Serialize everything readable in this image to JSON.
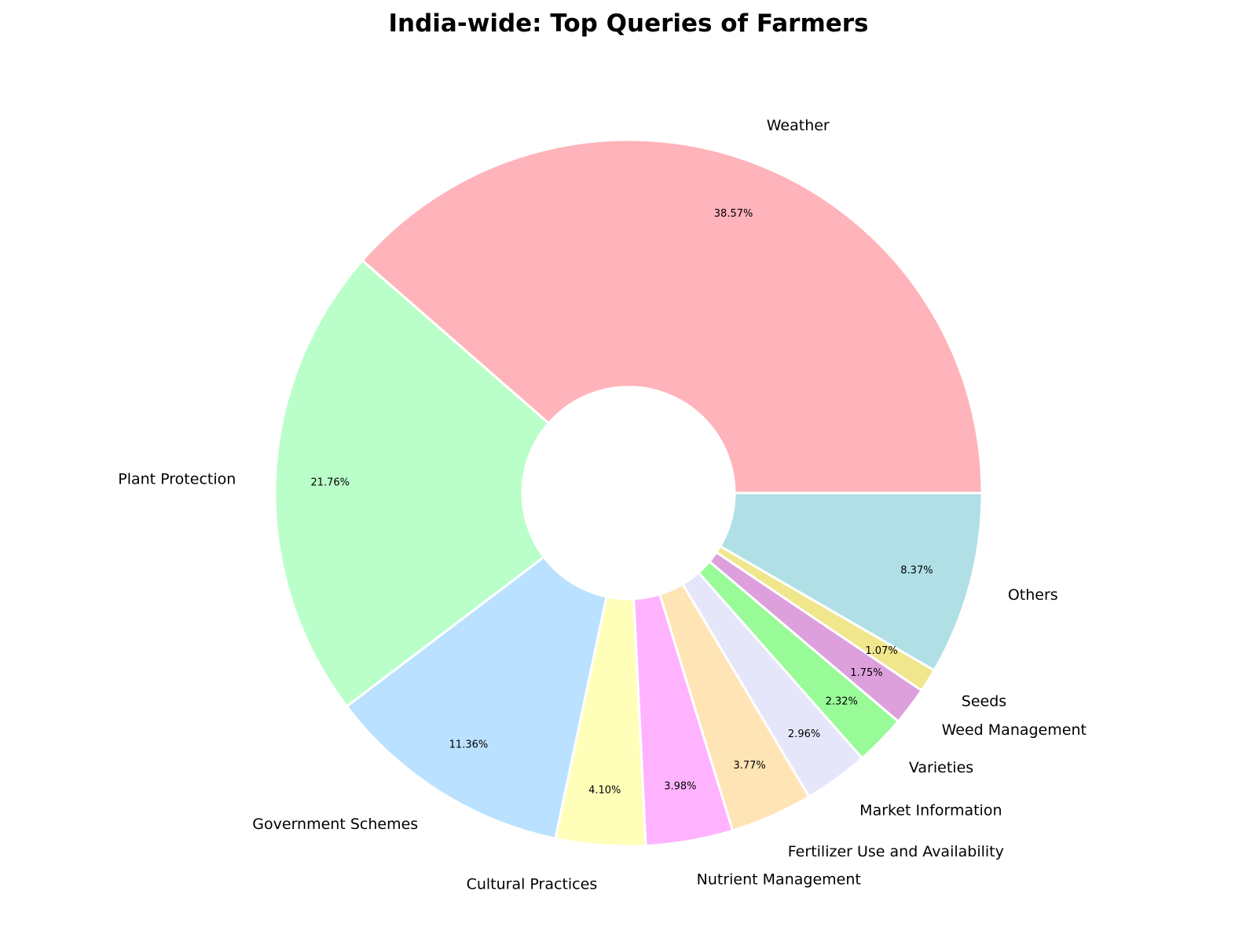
{
  "chart_data": {
    "type": "pie",
    "title": "India-wide: Top Queries of Farmers",
    "donut": true,
    "start_angle_deg": 0,
    "direction": "counterclockwise",
    "slices": [
      {
        "label": "Weather",
        "value": 38.57,
        "pct_text": "38.57%",
        "color": "#FFB3BA"
      },
      {
        "label": "Plant Protection",
        "value": 21.76,
        "pct_text": "21.76%",
        "color": "#BAFFC9"
      },
      {
        "label": "Government Schemes",
        "value": 11.36,
        "pct_text": "11.36%",
        "color": "#BAE1FF"
      },
      {
        "label": "Cultural Practices",
        "value": 4.1,
        "pct_text": "4.10%",
        "color": "#FFFFBA"
      },
      {
        "label": "Nutrient Management",
        "value": 3.98,
        "pct_text": "3.98%",
        "color": "#FFB3FF"
      },
      {
        "label": "Fertilizer Use and Availability",
        "value": 3.77,
        "pct_text": "3.77%",
        "color": "#FFE4B5"
      },
      {
        "label": "Market Information",
        "value": 2.96,
        "pct_text": "2.96%",
        "color": "#E6E6FA"
      },
      {
        "label": "Varieties",
        "value": 2.32,
        "pct_text": "2.32%",
        "color": "#98FB98"
      },
      {
        "label": "Weed Management",
        "value": 1.75,
        "pct_text": "1.75%",
        "color": "#DDA0DD"
      },
      {
        "label": "Seeds",
        "value": 1.07,
        "pct_text": "1.07%",
        "color": "#F0E68C"
      },
      {
        "label": "Others",
        "value": 8.37,
        "pct_text": "8.37%",
        "color": "#B0E0E6"
      }
    ]
  }
}
